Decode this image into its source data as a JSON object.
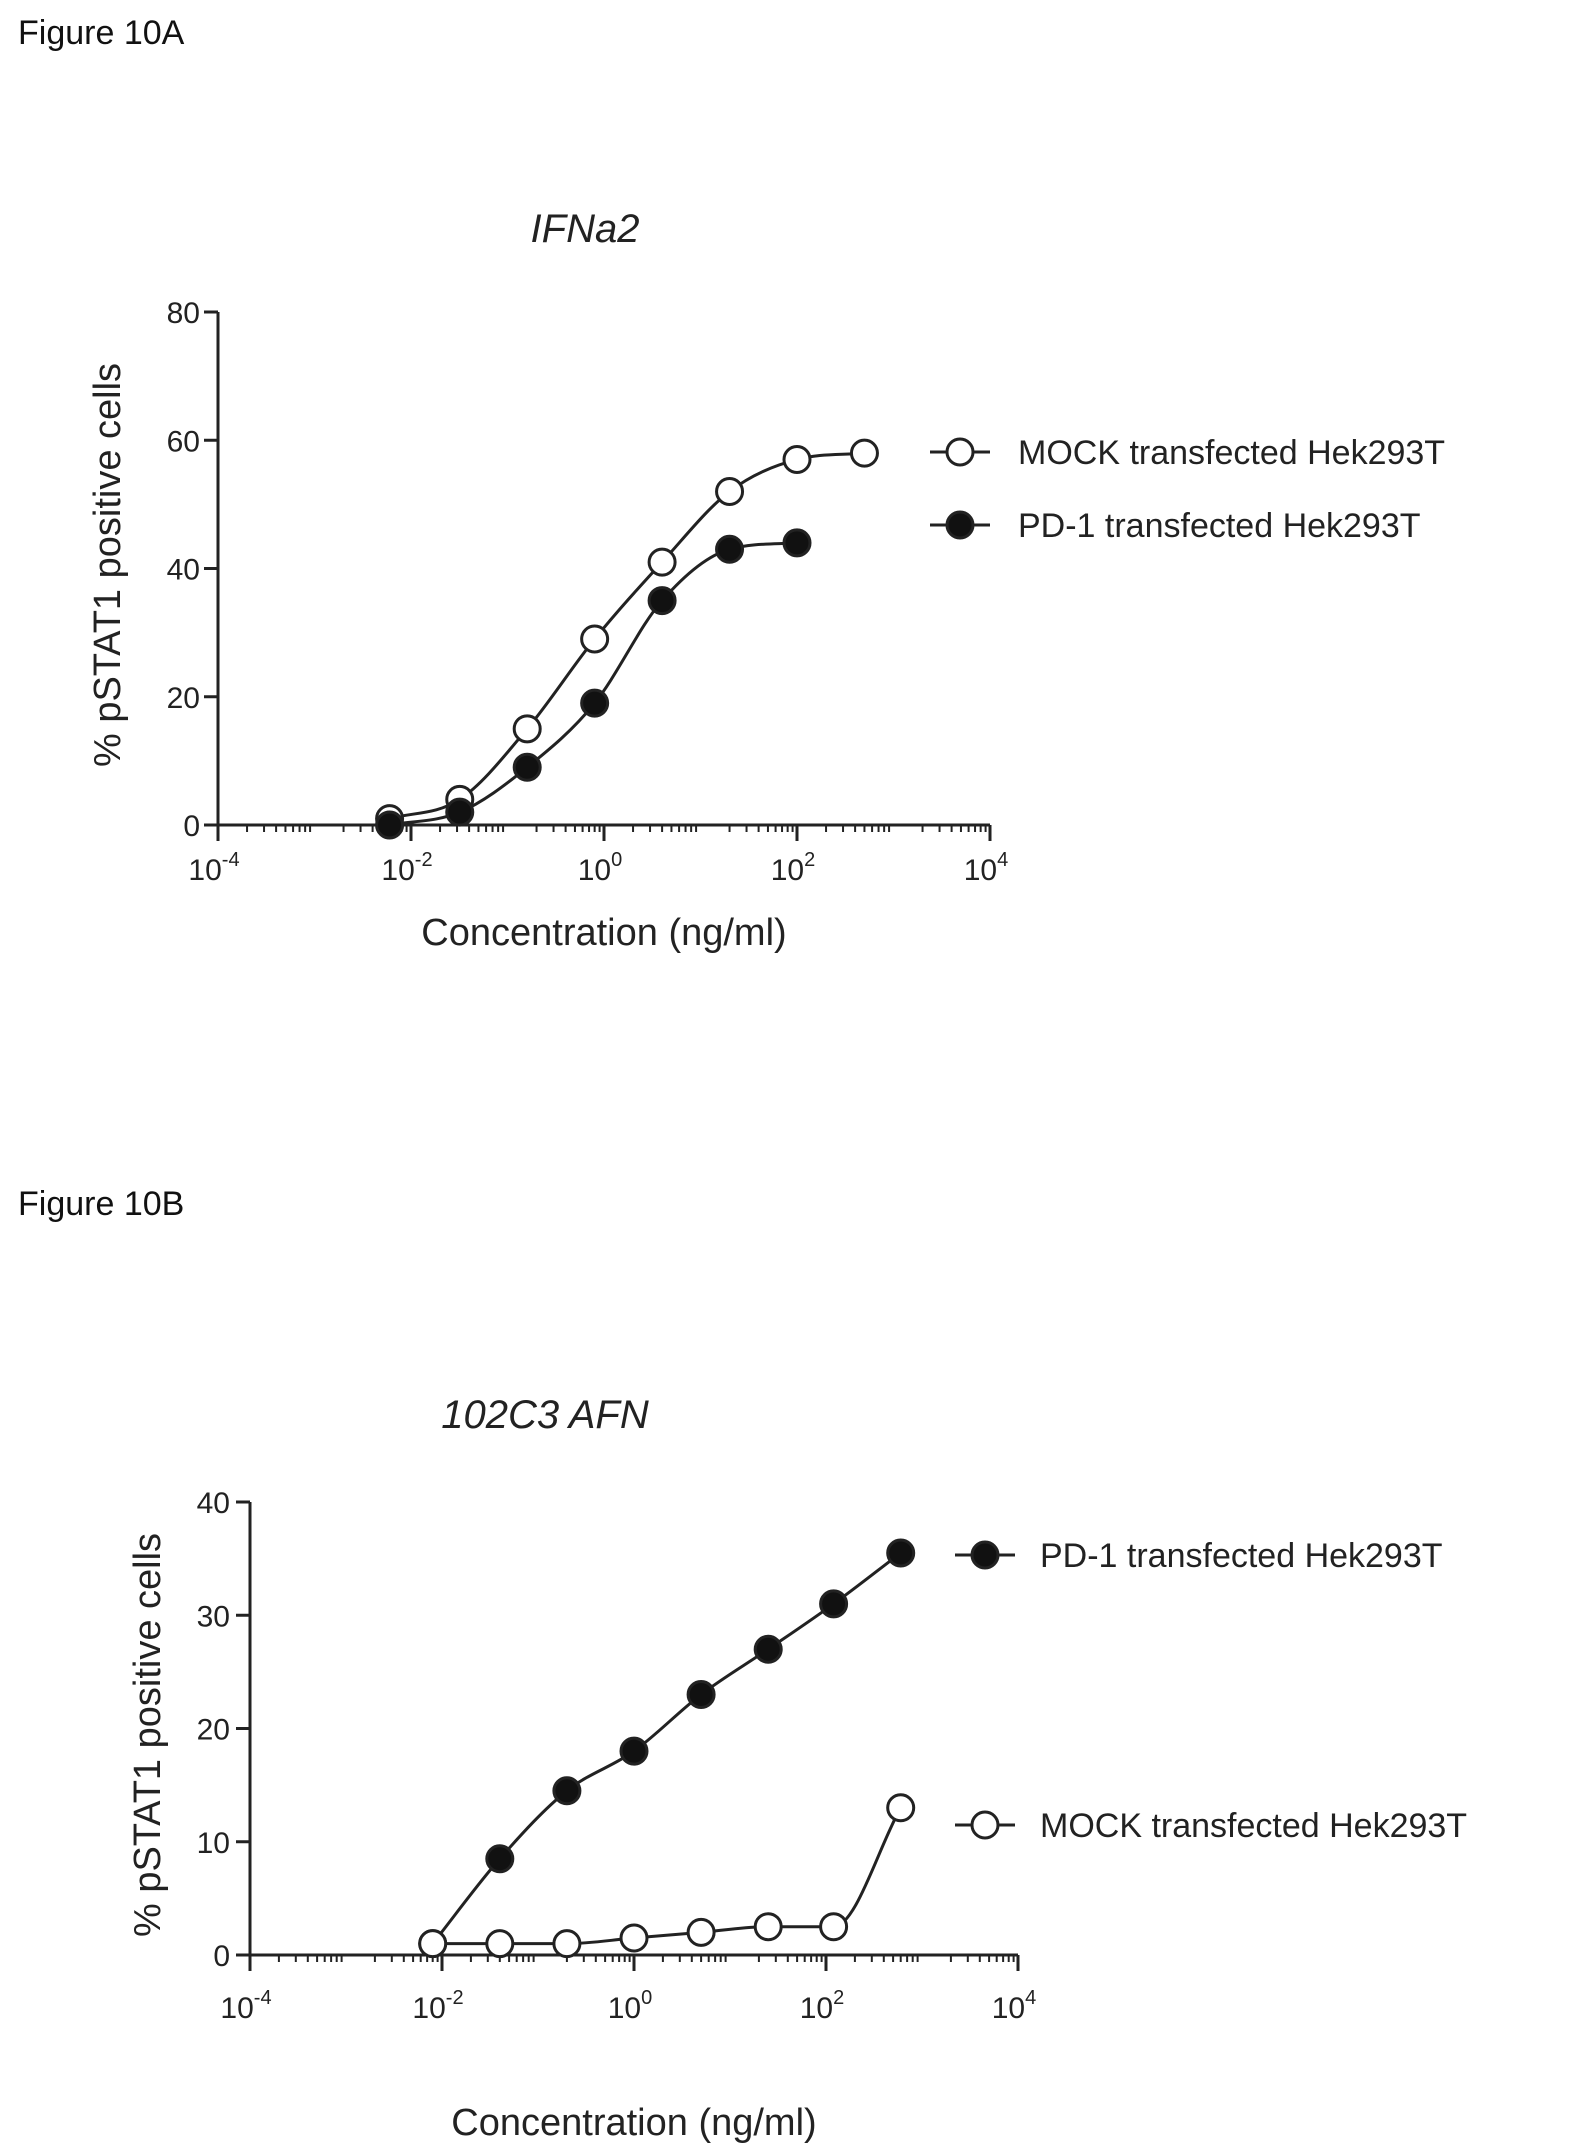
{
  "figures": [
    {
      "label": "Figure 10A"
    },
    {
      "label": "Figure 10B"
    }
  ],
  "colors": {
    "line": "#222222",
    "filled": "#111111",
    "open": "#ffffff"
  },
  "chart_data": [
    {
      "type": "line",
      "title": "IFNa2",
      "xlabel": "Concentration (ng/ml)",
      "ylabel": "% pSTAT1 positive cells",
      "xscale": "log",
      "xlim": [
        0.0001,
        10000
      ],
      "ylim": [
        0,
        80
      ],
      "yticks": [
        0,
        20,
        40,
        60,
        80
      ],
      "xticks": [
        {
          "value": 0.0001,
          "base": "10",
          "exp": "-4"
        },
        {
          "value": 0.01,
          "base": "10",
          "exp": "-2"
        },
        {
          "value": 1,
          "base": "10",
          "exp": "0"
        },
        {
          "value": 100,
          "base": "10",
          "exp": "2"
        },
        {
          "value": 10000,
          "base": "10",
          "exp": "4"
        }
      ],
      "legend_position": "right",
      "series": [
        {
          "name": "MOCK transfected Hek293T",
          "marker": "open",
          "x": [
            0.006,
            0.032,
            0.16,
            0.8,
            4,
            20,
            100,
            500
          ],
          "y": [
            1,
            4,
            15,
            29,
            41,
            52,
            57,
            58
          ]
        },
        {
          "name": "PD-1 transfected Hek293T",
          "marker": "filled",
          "x": [
            0.006,
            0.032,
            0.16,
            0.8,
            4,
            20,
            100
          ],
          "y": [
            0,
            2,
            9,
            19,
            35,
            43,
            44
          ]
        }
      ]
    },
    {
      "type": "line",
      "title": "102C3 AFN",
      "xlabel": "Concentration (ng/ml)",
      "ylabel": "% pSTAT1 positive cells",
      "xscale": "log",
      "xlim": [
        0.0001,
        10000
      ],
      "ylim": [
        0,
        40
      ],
      "yticks": [
        0,
        10,
        20,
        30,
        40
      ],
      "xticks": [
        {
          "value": 0.0001,
          "base": "10",
          "exp": "-4"
        },
        {
          "value": 0.01,
          "base": "10",
          "exp": "-2"
        },
        {
          "value": 1,
          "base": "10",
          "exp": "0"
        },
        {
          "value": 100,
          "base": "10",
          "exp": "2"
        },
        {
          "value": 10000,
          "base": "10",
          "exp": "4"
        }
      ],
      "legend_position": "right",
      "series": [
        {
          "name": "PD-1 transfected Hek293T",
          "marker": "filled",
          "x": [
            0.008,
            0.04,
            0.2,
            1,
            5,
            25,
            120,
            600
          ],
          "y": [
            1,
            8.5,
            14.5,
            18,
            23,
            27,
            31,
            35.5
          ]
        },
        {
          "name": "MOCK transfected Hek293T",
          "marker": "open",
          "x": [
            0.008,
            0.04,
            0.2,
            1,
            5,
            25,
            120,
            600
          ],
          "y": [
            1,
            1,
            1,
            1.5,
            2,
            2.5,
            2.5,
            13
          ]
        }
      ]
    }
  ]
}
